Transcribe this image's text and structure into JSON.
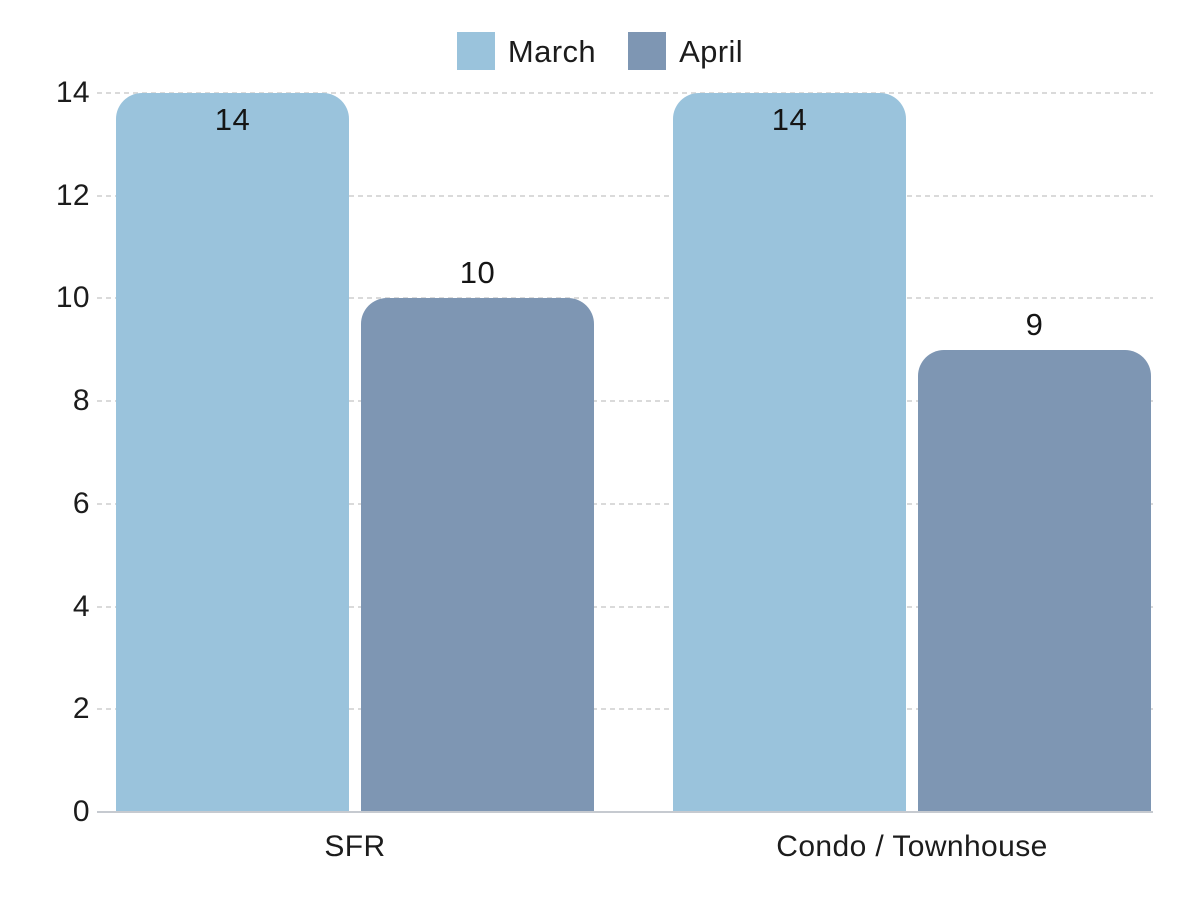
{
  "chart_data": {
    "type": "bar",
    "title": "",
    "xlabel": "",
    "ylabel": "",
    "categories": [
      "SFR",
      "Condo / Townhouse"
    ],
    "series": [
      {
        "name": "March",
        "color": "#9AC3DC",
        "values": [
          14,
          14
        ]
      },
      {
        "name": "April",
        "color": "#7E96B3",
        "values": [
          10,
          9
        ]
      }
    ],
    "value_labels": {
      "March": [
        "14",
        "14"
      ],
      "April": [
        "10",
        "9"
      ]
    },
    "ylim": [
      0,
      14
    ],
    "yticks": [
      "0",
      "2",
      "4",
      "6",
      "8",
      "10",
      "12",
      "14"
    ],
    "grid": true,
    "gridline_style": "dashed",
    "gridline_color": "#DADADA",
    "baseline_color": "#C6CAD0",
    "legend_position": "top",
    "background": "#FFFFFF",
    "text_color": "#1C1C1C"
  }
}
